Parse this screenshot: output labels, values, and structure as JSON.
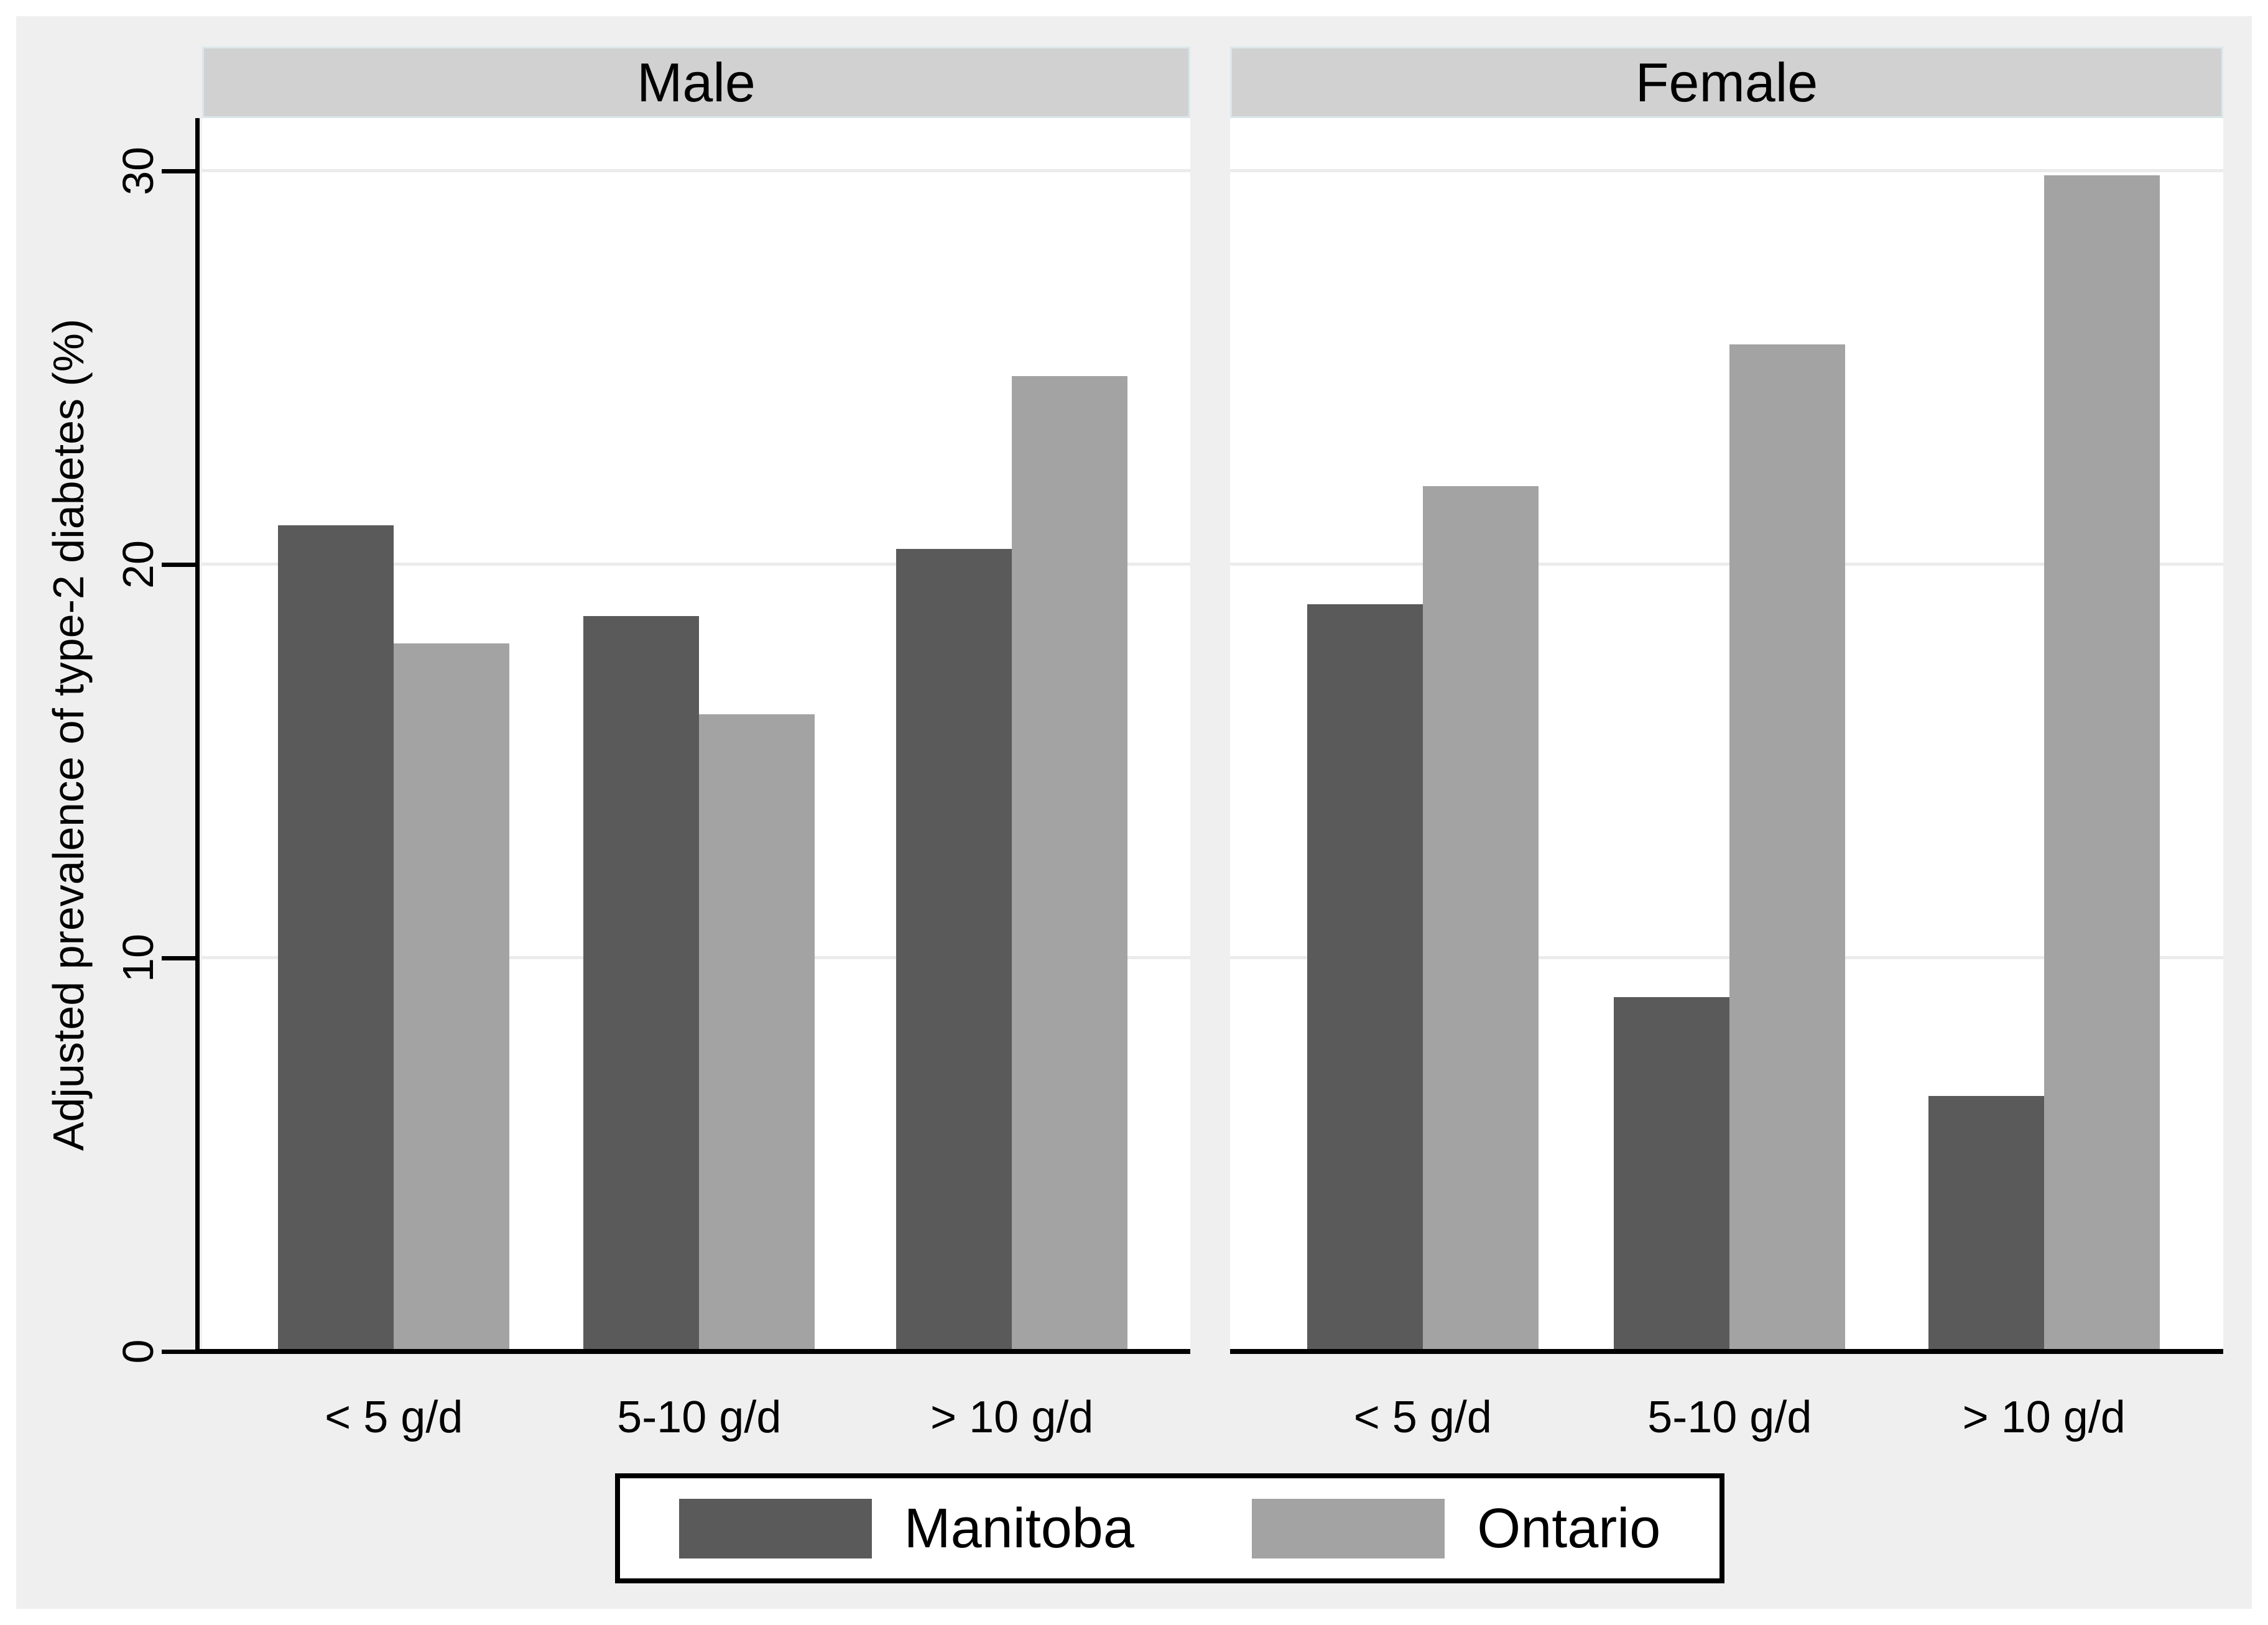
{
  "chart_data": {
    "type": "bar",
    "title": "",
    "ylabel": "Adjusted prevalence of type-2 diabetes (%)",
    "ylim": [
      0,
      31.35
    ],
    "yticks": [
      0,
      10,
      20,
      30
    ],
    "grid": true,
    "legend_position": "bottom-center",
    "categories": [
      "< 5 g/d",
      "5-10 g/d",
      "> 10 g/d"
    ],
    "facets": [
      {
        "label": "Male",
        "series": [
          {
            "name": "Manitoba",
            "color": "#5a5a5a",
            "values": [
              21.0,
              18.7,
              20.4
            ]
          },
          {
            "name": "Ontario",
            "color": "#a3a3a3",
            "values": [
              18.0,
              16.2,
              24.8
            ]
          }
        ]
      },
      {
        "label": "Female",
        "series": [
          {
            "name": "Manitoba",
            "color": "#5a5a5a",
            "values": [
              19.0,
              9.0,
              6.5
            ]
          },
          {
            "name": "Ontario",
            "color": "#a3a3a3",
            "values": [
              22.0,
              25.6,
              29.9
            ]
          }
        ]
      }
    ],
    "colors": {
      "background": "#efefef",
      "plot": "#ffffff",
      "header_strip": "#d1d1d1",
      "gridline": "#ebebeb",
      "axis": "#000000"
    }
  }
}
